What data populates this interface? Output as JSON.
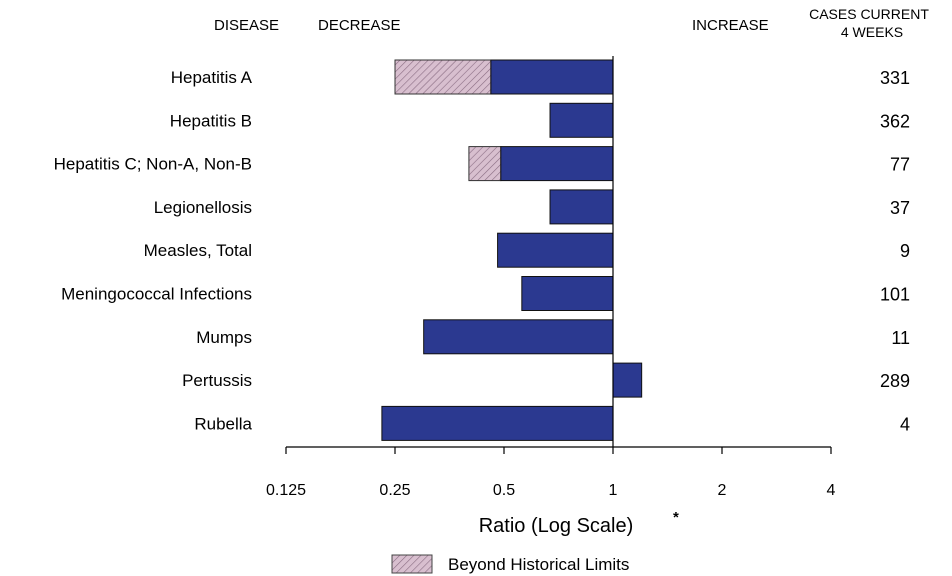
{
  "chart_data": {
    "type": "bar",
    "orientation": "horizontal",
    "xscale": "log2",
    "xlim": [
      0.125,
      4
    ],
    "reference_value": 1,
    "xticks": [
      "0.125",
      "0.25",
      "0.5",
      "1",
      "2",
      "4"
    ],
    "header": {
      "disease": "DISEASE",
      "decrease": "DECREASE",
      "increase": "INCREASE",
      "cases_line1": "CASES CURRENT",
      "cases_line2": "4 WEEKS"
    },
    "xlabel": "Ratio (Log Scale)",
    "xlabel_mark": "*",
    "legend": {
      "label": "Beyond Historical Limits",
      "placement": "bottom-center"
    },
    "categories": [
      "Hepatitis A",
      "Hepatitis B",
      "Hepatitis C; Non-A, Non-B",
      "Legionellosis",
      "Measles, Total",
      "Meningococcal Infections",
      "Mumps",
      "Pertussis",
      "Rubella"
    ],
    "values": [
      0.25,
      0.67,
      0.4,
      0.67,
      0.48,
      0.56,
      0.3,
      1.2,
      0.23
    ],
    "historical_limit": [
      0.46,
      null,
      0.49,
      null,
      null,
      null,
      null,
      null,
      null
    ],
    "cases_current_4_weeks": [
      "331",
      "362",
      "77",
      "37",
      "9",
      "101",
      "11",
      "289",
      "4"
    ],
    "colors": {
      "bar": "#2b3990",
      "beyond": "#d8bfcf",
      "hatch": "#8a6d83"
    }
  }
}
